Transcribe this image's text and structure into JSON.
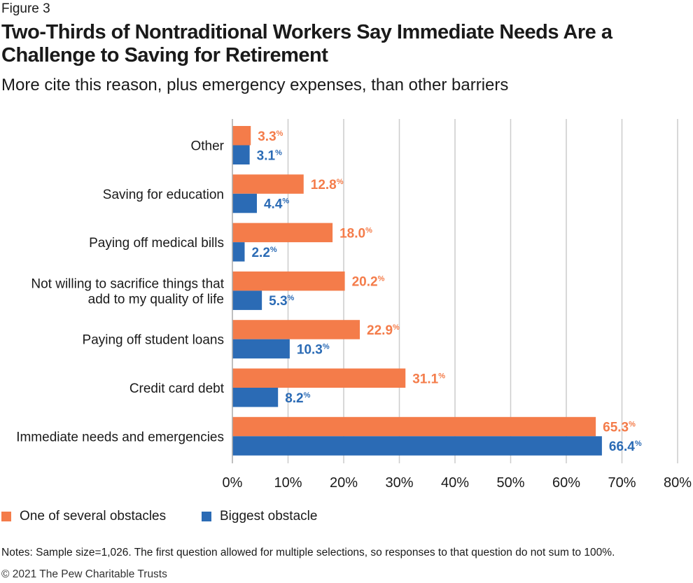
{
  "figure_label": "Figure 3",
  "title": "Two-Thirds of Nontraditional Workers Say Immediate Needs Are a Challenge to Saving for Retirement",
  "subtitle": "More cite this reason, plus emergency expenses, than other barriers",
  "notes": "Notes: Sample size=1,026. The first question allowed for multiple selections, so responses to that question do not sum to 100%.",
  "copyright": "© 2021 The Pew Charitable Trusts",
  "colors": {
    "orange": "#F47C4A",
    "blue": "#2B6BB5",
    "grid": "#cccccc"
  },
  "chart_data": {
    "type": "bar",
    "orientation": "horizontal",
    "categories": [
      [
        "Other"
      ],
      [
        "Saving for education"
      ],
      [
        "Paying off medical bills"
      ],
      [
        "Not willing to sacrifice things that",
        "add to my quality of life"
      ],
      [
        "Paying off student loans"
      ],
      [
        "Credit card debt"
      ],
      [
        "Immediate needs and emergencies"
      ]
    ],
    "series": [
      {
        "name": "One of several obstacles",
        "color": "#F47C4A",
        "values": [
          3.3,
          12.8,
          18.0,
          20.2,
          22.9,
          31.1,
          65.3
        ],
        "labels": [
          "3.3",
          "12.8",
          "18.0",
          "20.2",
          "22.9",
          "31.1",
          "65.3"
        ]
      },
      {
        "name": "Biggest obstacle",
        "color": "#2B6BB5",
        "values": [
          3.1,
          4.4,
          2.2,
          5.3,
          10.3,
          8.2,
          66.4
        ],
        "labels": [
          "3.1",
          "4.4",
          "2.2",
          "5.3",
          "10.3",
          "8.2",
          "66.4"
        ]
      }
    ],
    "value_suffix": "%",
    "xlim": [
      0,
      80
    ],
    "xticks": [
      0,
      10,
      20,
      30,
      40,
      50,
      60,
      70,
      80
    ],
    "xtick_labels": [
      "0%",
      "10%",
      "20%",
      "30%",
      "40%",
      "50%",
      "60%",
      "70%",
      "80%"
    ],
    "grid": true,
    "legend_position": "bottom-left"
  }
}
